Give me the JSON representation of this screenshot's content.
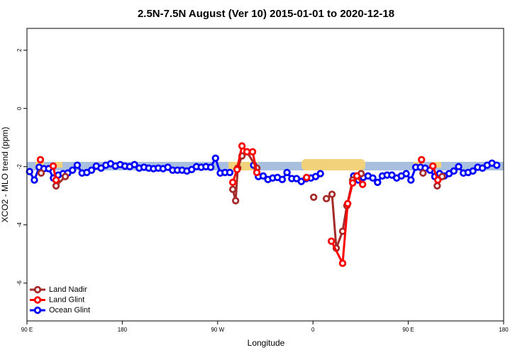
{
  "chart_data": {
    "type": "line",
    "title": "2.5N-7.5N August (Ver 10)   2015-01-01 to 2020-12-18",
    "xlabel": "Longitude",
    "ylabel": "XCO2 - MLO trend (ppm)",
    "xlim": [
      90,
      540
    ],
    "ylim": [
      -7.3,
      2.75
    ],
    "xticks": [
      {
        "value": 90,
        "label": "90 E"
      },
      180,
      {
        "value": 270,
        "label": "90 W"
      },
      {
        "value": 360,
        "label": "0"
      },
      {
        "value": 450,
        "label": "90 E"
      },
      {
        "value": 540,
        "label": "180"
      }
    ],
    "yticks": [
      2,
      0,
      -2,
      -4,
      -6
    ],
    "legend": "bottom-left",
    "series": [
      {
        "name": "Land Nadir",
        "color": "#a52a2a",
        "x": [
          103.4,
          null,
          117.5,
          126.2,
          null,
          284.3,
          287,
          289,
          293,
          297.7,
          307,
          null,
          360.7,
          null,
          372.7,
          378,
          382,
          388,
          392,
          397.5,
          401.5,
          405.5,
          null,
          463.9,
          null,
          477.3,
          482
        ],
        "values": [
          -2.22,
          null,
          -2.66,
          -2.34,
          null,
          -2.78,
          -3.17,
          -2.05,
          -1.63,
          -1.49,
          -2.05,
          null,
          -3.05,
          null,
          -3.1,
          -2.95,
          -4.8,
          -4.22,
          -3.34,
          -2.46,
          -2.32,
          -2.24,
          null,
          -2.22,
          null,
          -2.66,
          -2.34
        ]
      },
      {
        "name": "Land Glint",
        "color": "#ff0000",
        "x": [
          102.7,
          null,
          114.8,
          117.5,
          null,
          284.3,
          288.3,
          293,
          297.7,
          303,
          307,
          null,
          354,
          null,
          377.4,
          388,
          392.8,
          397.5,
          401.5,
          406.9,
          null,
          462.5,
          null,
          473.2,
          477.9
        ],
        "values": [
          -1.76,
          null,
          -1.98,
          -2.46,
          null,
          -2.54,
          -2.1,
          -1.29,
          -1.49,
          -1.49,
          -2.2,
          null,
          -2.37,
          null,
          -4.56,
          -5.32,
          -3.27,
          -2.56,
          -2.32,
          -2.61,
          null,
          -1.76,
          null,
          -1.98,
          -2.46
        ]
      },
      {
        "name": "Ocean Glint",
        "color": "#0000ff",
        "x": [
          92.5,
          97,
          101.5,
          106,
          110.5,
          115,
          119.5,
          124,
          128.5,
          133,
          137.5,
          142,
          146.5,
          151,
          155.5,
          160,
          164.5,
          169,
          173.5,
          178,
          182.5,
          187,
          191.5,
          196,
          200.5,
          205,
          209.5,
          214,
          218.5,
          223,
          227.5,
          232,
          236.5,
          241,
          245.5,
          250,
          254.5,
          259,
          263.5,
          268,
          272.5,
          277,
          281.5,
          null,
          304,
          308.5,
          313,
          317.5,
          322,
          326.5,
          331,
          335.5,
          340,
          344.5,
          349,
          353.5,
          358,
          362.5,
          367,
          null,
          398.5,
          403,
          407.5,
          412,
          416.5,
          421,
          425.5,
          430,
          434.5,
          439,
          443.5,
          448,
          452.5,
          457,
          461.5,
          466,
          470.5,
          475,
          479.5,
          484,
          488.5,
          493,
          497.5,
          502,
          506.5,
          511,
          515.5,
          520,
          524.5,
          529,
          533.5
        ],
        "values": [
          -2.17,
          -2.46,
          -2.02,
          -2.07,
          -2.07,
          -2.39,
          -2.29,
          -2.24,
          -2.22,
          -2.12,
          -1.95,
          -2.22,
          -2.2,
          -2.12,
          -1.98,
          -2.05,
          -1.95,
          -1.9,
          -1.98,
          -1.93,
          -1.98,
          -2.0,
          -1.93,
          -2.05,
          -2.02,
          -2.05,
          -2.07,
          -2.05,
          -2.07,
          -2.02,
          -2.12,
          -2.12,
          -2.12,
          -2.15,
          -2.1,
          -2.0,
          -2.02,
          -2.0,
          -2.02,
          -1.71,
          -2.22,
          -2.2,
          -2.2,
          null,
          -1.95,
          -2.34,
          -2.32,
          -2.44,
          -2.39,
          -2.37,
          -2.44,
          -2.2,
          -2.41,
          -2.41,
          -2.51,
          -2.41,
          -2.39,
          -2.34,
          -2.24,
          null,
          -2.32,
          -2.46,
          -2.37,
          -2.32,
          -2.39,
          -2.54,
          -2.32,
          -2.29,
          -2.29,
          -2.39,
          -2.32,
          -2.24,
          -2.46,
          -2.02,
          -2.02,
          -2.05,
          -2.12,
          -2.34,
          -2.24,
          -2.32,
          -2.24,
          -2.15,
          -2.0,
          -2.22,
          -2.2,
          -2.15,
          -2.02,
          -2.05,
          -1.95,
          -1.88,
          -1.95
        ]
      }
    ]
  }
}
